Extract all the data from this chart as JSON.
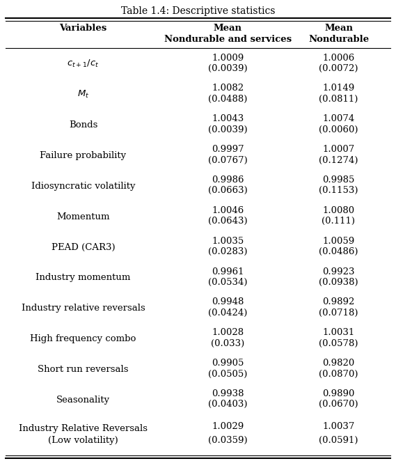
{
  "title": "Table 1.4: Descriptive statistics",
  "col_headers_line1": [
    "Variables",
    "Mean",
    "Mean"
  ],
  "col_headers_line2": [
    "",
    "Nondurable and services",
    "Nondurable"
  ],
  "rows": [
    {
      "label": "$c_{t+1}/c_t$",
      "val1": "1.0009",
      "std1": "(0.0039)",
      "val2": "1.0006",
      "std2": "(0.0072)",
      "italic": true
    },
    {
      "label": "$M_t$",
      "val1": "1.0082",
      "std1": "(0.0488)",
      "val2": "1.0149",
      "std2": "(0.0811)",
      "italic": true
    },
    {
      "label": "Bonds",
      "val1": "1.0043",
      "std1": "(0.0039)",
      "val2": "1.0074",
      "std2": "(0.0060)",
      "italic": false
    },
    {
      "label": "Failure probability",
      "val1": "0.9997",
      "std1": "(0.0767)",
      "val2": "1.0007",
      "std2": "(0.1274)",
      "italic": false
    },
    {
      "label": "Idiosyncratic volatility",
      "val1": "0.9986",
      "std1": "(0.0663)",
      "val2": "0.9985",
      "std2": "(0.1153)",
      "italic": false
    },
    {
      "label": "Momentum",
      "val1": "1.0046",
      "std1": "(0.0643)",
      "val2": "1.0080",
      "std2": "(0.111)",
      "italic": false
    },
    {
      "label": "PEAD (CAR3)",
      "val1": "1.0035",
      "std1": "(0.0283)",
      "val2": "1.0059",
      "std2": "(0.0486)",
      "italic": false
    },
    {
      "label": "Industry momentum",
      "val1": "0.9961",
      "std1": "(0.0534)",
      "val2": "0.9923",
      "std2": "(0.0938)",
      "italic": false
    },
    {
      "label": "Industry relative reversals",
      "val1": "0.9948",
      "std1": "(0.0424)",
      "val2": "0.9892",
      "std2": "(0.0718)",
      "italic": false
    },
    {
      "label": "High frequency combo",
      "val1": "1.0028",
      "std1": "(0.033)",
      "val2": "1.0031",
      "std2": "(0.0578)",
      "italic": false
    },
    {
      "label": "Short run reversals",
      "val1": "0.9905",
      "std1": "(0.0505)",
      "val2": "0.9820",
      "std2": "(0.0870)",
      "italic": false
    },
    {
      "label": "Seasonality",
      "val1": "0.9938",
      "std1": "(0.0403)",
      "val2": "0.9890",
      "std2": "(0.0670)",
      "italic": false
    },
    {
      "label": "Industry Relative Reversals\n(Low volatility)",
      "val1": "1.0029",
      "std1": "(0.0359)",
      "val2": "1.0037",
      "std2": "(0.0591)",
      "italic": false
    }
  ],
  "figsize": [
    5.69,
    6.62
  ],
  "dpi": 100,
  "bg_color": "#ffffff",
  "text_color": "#000000",
  "line_color": "#000000",
  "fontsize": 9.5,
  "header_fontsize": 9.5,
  "title_fontsize": 10
}
